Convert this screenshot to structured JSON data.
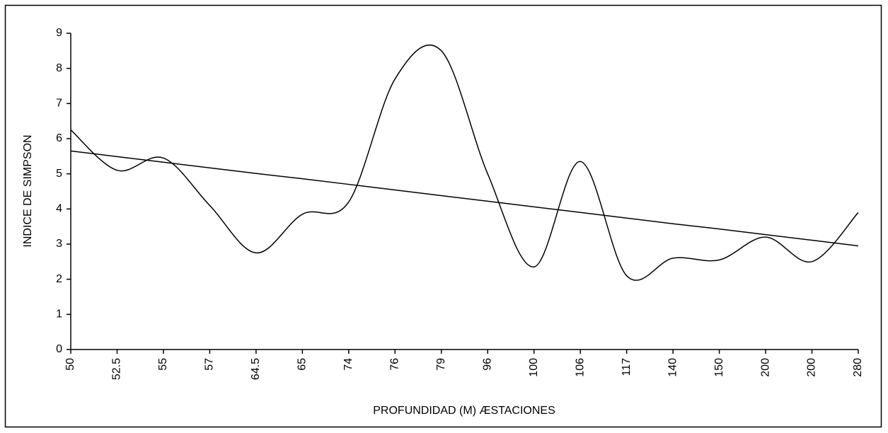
{
  "chart_data": {
    "type": "line",
    "categories": [
      "50",
      "52.5",
      "55",
      "57",
      "64.5",
      "65",
      "74",
      "76",
      "79",
      "96",
      "100",
      "106",
      "117",
      "140",
      "150",
      "200",
      "200",
      "280"
    ],
    "series": [
      {
        "color": "#000000",
        "smooth": true,
        "values": [
          6.25,
          5.1,
          5.45,
          4.1,
          2.75,
          3.85,
          4.2,
          7.7,
          8.5,
          5.0,
          2.35,
          5.35,
          2.1,
          2.6,
          2.55,
          3.2,
          2.5,
          3.9
        ]
      },
      {
        "color": "#000000",
        "smooth": false,
        "values": [
          5.65,
          5.49,
          5.33,
          5.17,
          5.01,
          4.86,
          4.7,
          4.54,
          4.38,
          4.22,
          4.06,
          3.9,
          3.74,
          3.58,
          3.43,
          3.27,
          3.11,
          2.95
        ]
      }
    ],
    "xlabel": "PROFUNDIDAD (M) ÆSTACIONES",
    "ylabel": "INDICE DE SIMPSON",
    "ylim": [
      0,
      9
    ],
    "yticks": [
      0,
      1,
      2,
      3,
      4,
      5,
      6,
      7,
      8,
      9
    ],
    "grid": false
  }
}
